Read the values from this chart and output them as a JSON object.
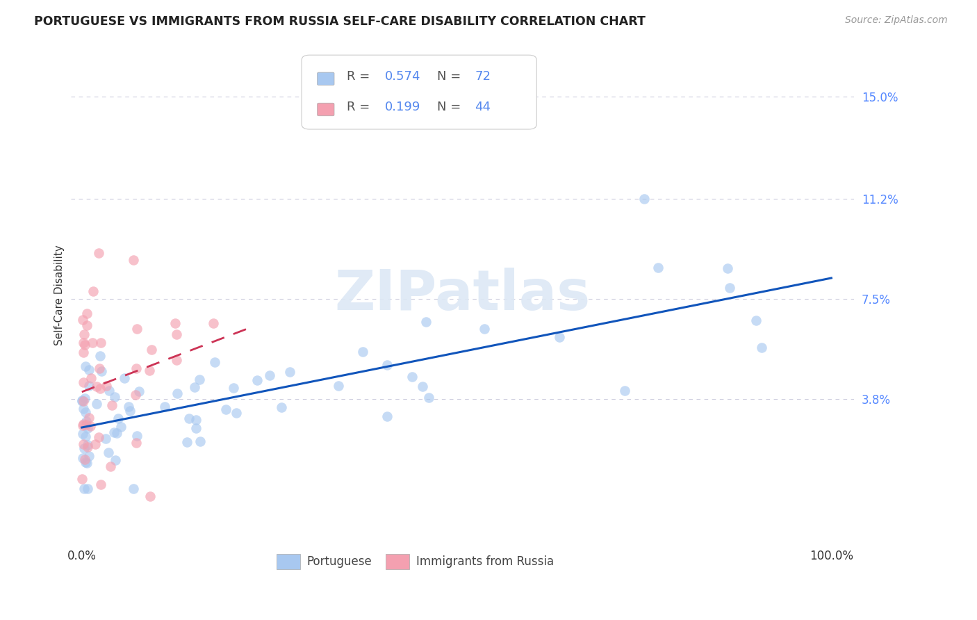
{
  "title": "PORTUGUESE VS IMMIGRANTS FROM RUSSIA SELF-CARE DISABILITY CORRELATION CHART",
  "source": "Source: ZipAtlas.com",
  "ylabel": "Self-Care Disability",
  "watermark": "ZIPatlas",
  "ytick_labels": [
    "3.8%",
    "7.5%",
    "11.2%",
    "15.0%"
  ],
  "ytick_values": [
    0.038,
    0.075,
    0.112,
    0.15
  ],
  "legend1_R": "0.574",
  "legend1_N": "72",
  "legend2_R": "0.199",
  "legend2_N": "44",
  "color_blue": "#A8C8F0",
  "color_pink": "#F4A0B0",
  "line_blue": "#1155BB",
  "line_pink": "#CC3355",
  "background": "#FFFFFF",
  "grid_color": "#CCCCDD"
}
